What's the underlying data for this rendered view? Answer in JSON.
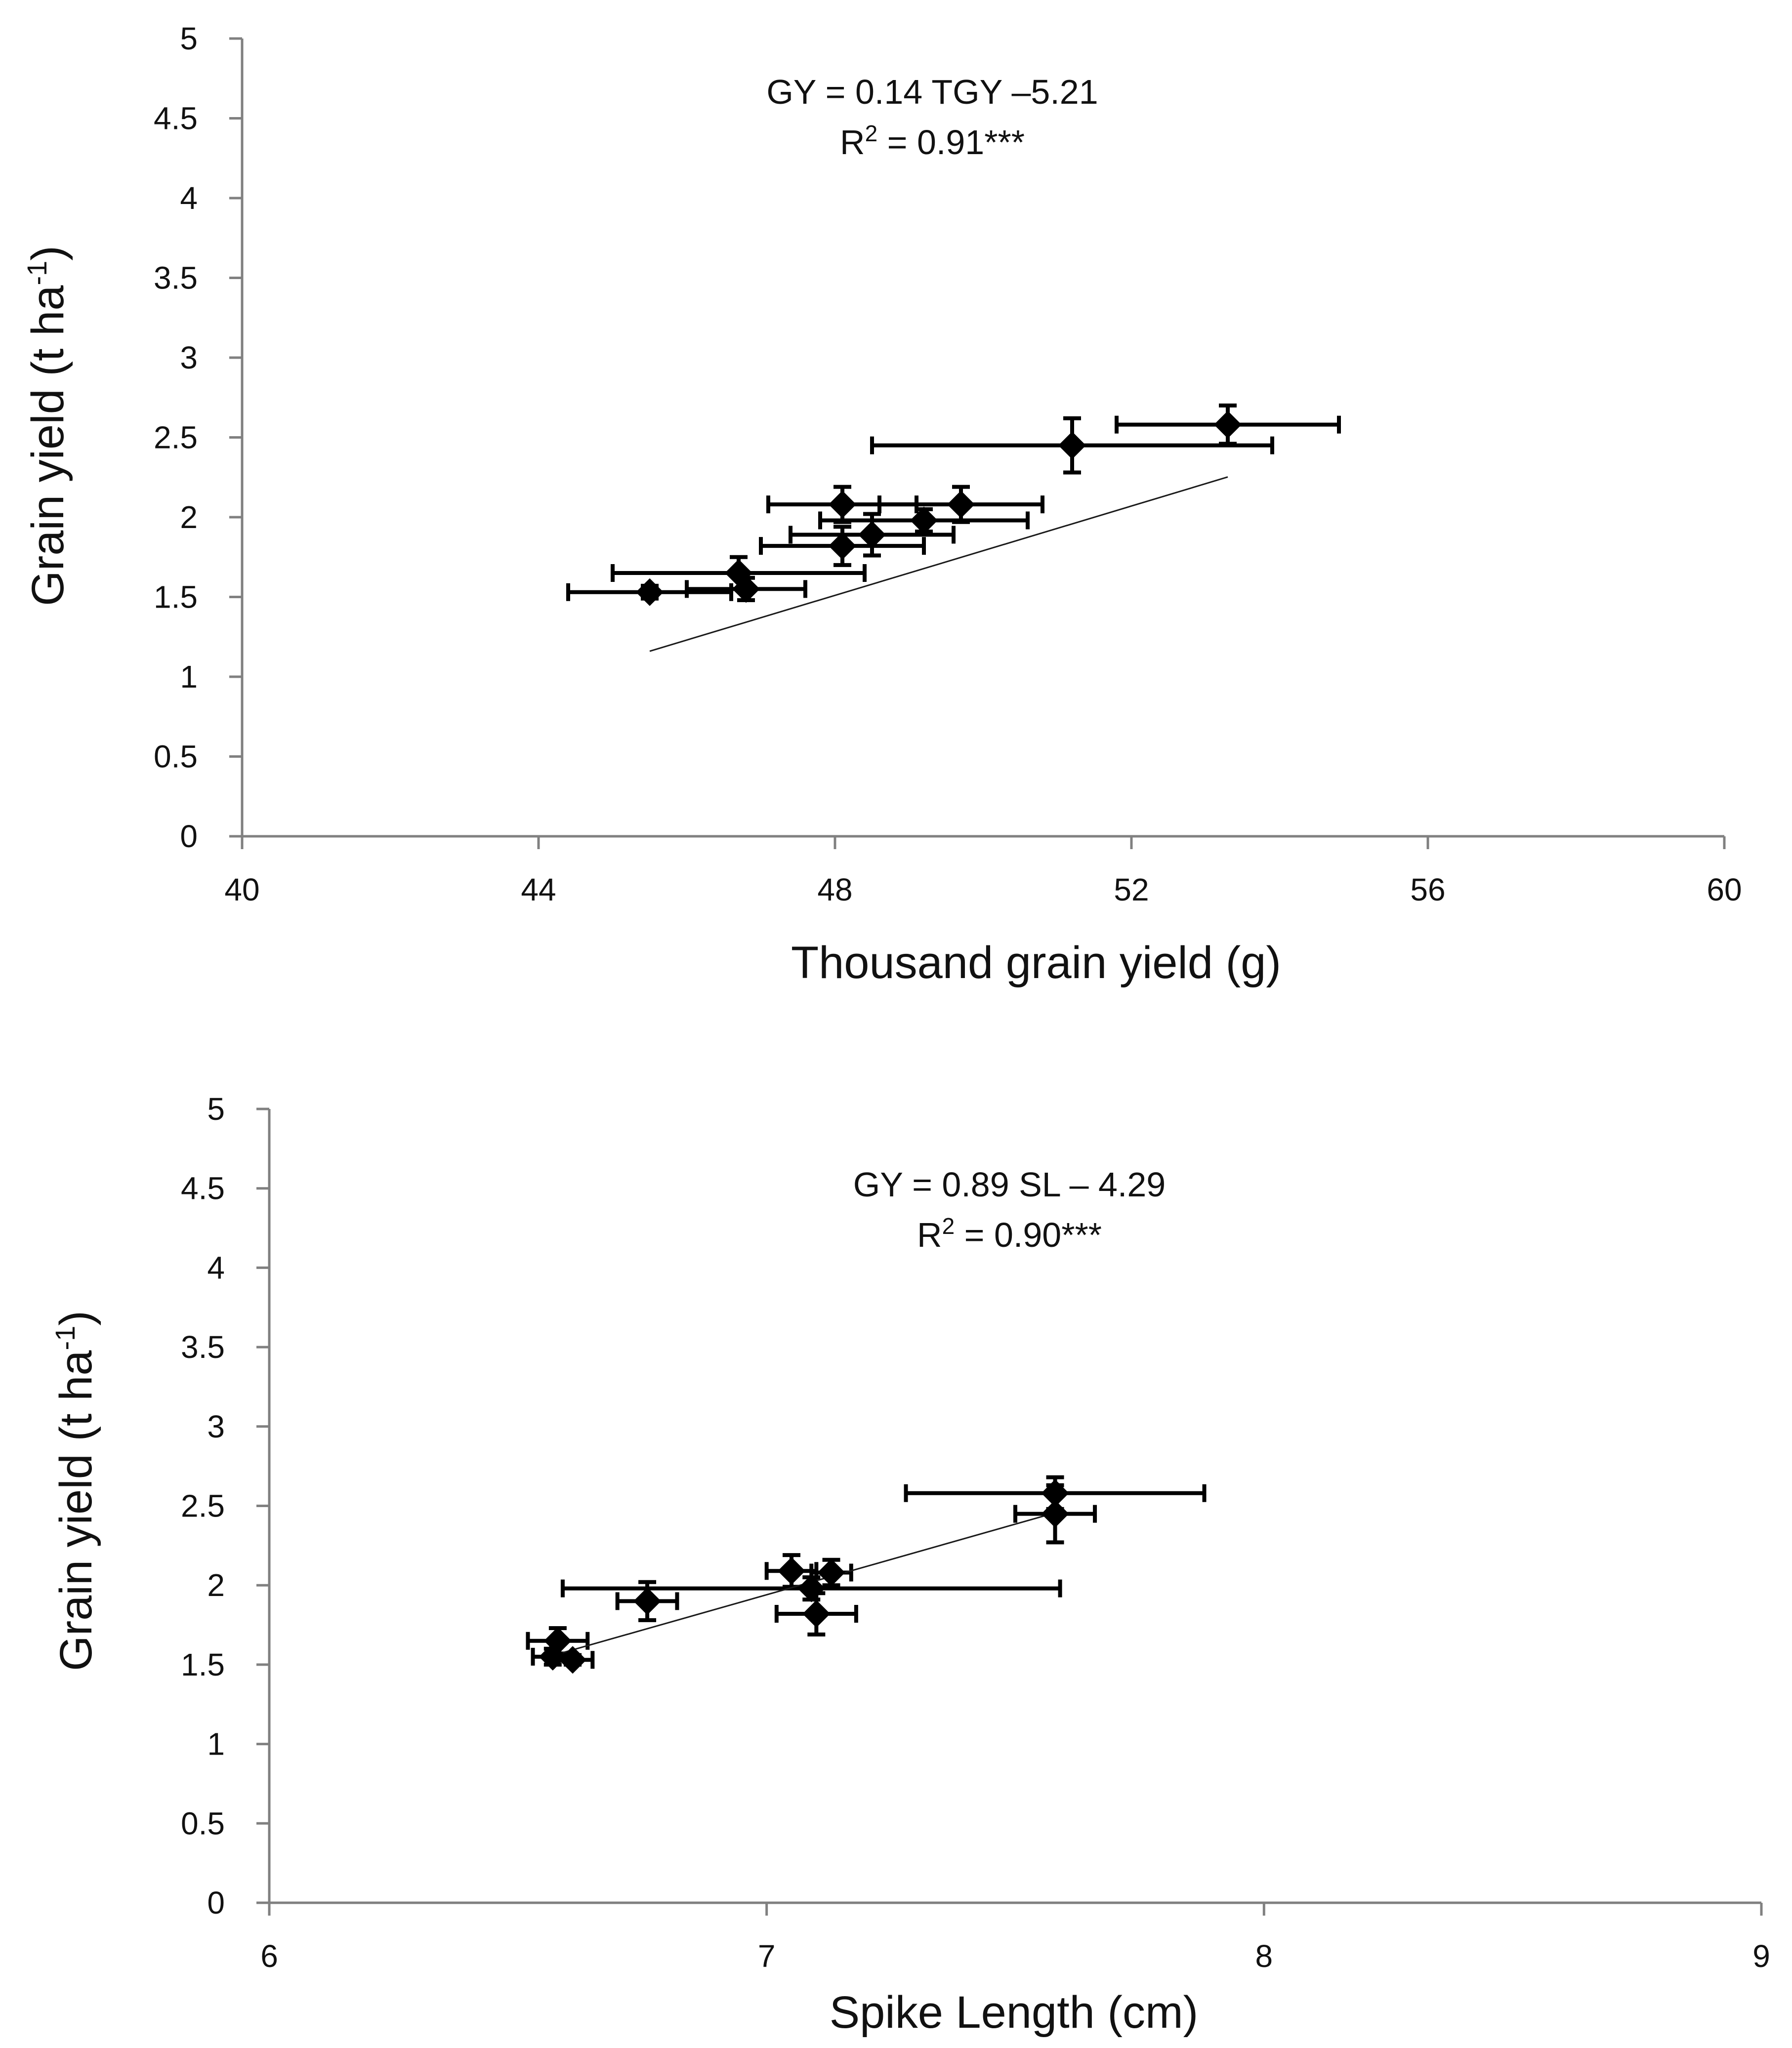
{
  "chart_data": [
    {
      "type": "scatter",
      "name": "tgy",
      "xlabel": "Thousand grain yield (g)",
      "ylabel": "Grain yield (t ha",
      "ylabel_sup": "-1",
      "ylabel_end": ")",
      "xlim": [
        40,
        60
      ],
      "ylim": [
        0,
        5
      ],
      "xticks": [
        "40",
        "44",
        "48",
        "52",
        "56",
        "60"
      ],
      "yticks": [
        "0",
        "0.5",
        "1",
        "1.5",
        "2",
        "2.5",
        "3",
        "3.5",
        "4",
        "4.5",
        "5"
      ],
      "equation": "GY = 0.14 TGY –5.21",
      "r2_prefix": "R",
      "r2_sup": "2",
      "r2_value": " = 0.91***",
      "fit": {
        "slope": 0.14,
        "intercept": -5.21,
        "x_range": [
          45.5,
          53.3
        ]
      },
      "points": [
        {
          "x": 45.5,
          "y": 1.53,
          "xerr": 1.1,
          "yerr": 0.04
        },
        {
          "x": 46.7,
          "y": 1.65,
          "xerr": 1.7,
          "yerr": 0.1
        },
        {
          "x": 46.8,
          "y": 1.55,
          "xerr": 0.8,
          "yerr": 0.07
        },
        {
          "x": 48.1,
          "y": 1.82,
          "xerr": 1.1,
          "yerr": 0.12
        },
        {
          "x": 48.5,
          "y": 1.89,
          "xerr": 1.1,
          "yerr": 0.13
        },
        {
          "x": 48.1,
          "y": 2.08,
          "xerr": 1.0,
          "yerr": 0.11
        },
        {
          "x": 49.2,
          "y": 1.98,
          "xerr": 1.4,
          "yerr": 0.07
        },
        {
          "x": 49.7,
          "y": 2.08,
          "xerr": 1.1,
          "yerr": 0.11
        },
        {
          "x": 51.2,
          "y": 2.45,
          "xerr": 2.7,
          "yerr": 0.17
        },
        {
          "x": 53.3,
          "y": 2.58,
          "xerr": 1.5,
          "yerr": 0.12
        }
      ]
    },
    {
      "type": "scatter",
      "name": "sl",
      "xlabel": "Spike Length (cm)",
      "ylabel": "Grain yield (t ha",
      "ylabel_sup": "-1",
      "ylabel_end": ")",
      "xlim": [
        6,
        9
      ],
      "ylim": [
        0,
        5
      ],
      "xticks": [
        "6",
        "7",
        "8",
        "9"
      ],
      "yticks": [
        "0",
        "0.5",
        "1",
        "1.5",
        "2",
        "2.5",
        "3",
        "3.5",
        "4",
        "4.5",
        "5"
      ],
      "equation": "GY = 0.89 SL – 4.29",
      "r2_prefix": "R",
      "r2_sup": "2",
      "r2_value": " = 0.90***",
      "fit": {
        "slope": 0.89,
        "intercept": -4.29,
        "x_range": [
          6.58,
          7.58
        ]
      },
      "points": [
        {
          "x": 6.58,
          "y": 1.65,
          "xerr": 0.06,
          "yerr": 0.08
        },
        {
          "x": 6.57,
          "y": 1.55,
          "xerr": 0.04,
          "yerr": 0.05
        },
        {
          "x": 6.61,
          "y": 1.53,
          "xerr": 0.04,
          "yerr": 0.03
        },
        {
          "x": 6.76,
          "y": 1.9,
          "xerr": 0.06,
          "yerr": 0.12
        },
        {
          "x": 7.05,
          "y": 2.09,
          "xerr": 0.05,
          "yerr": 0.1
        },
        {
          "x": 7.13,
          "y": 2.08,
          "xerr": 0.04,
          "yerr": 0.08
        },
        {
          "x": 7.09,
          "y": 1.98,
          "xerr": 0.5,
          "yerr": 0.07
        },
        {
          "x": 7.1,
          "y": 1.82,
          "xerr": 0.08,
          "yerr": 0.13
        },
        {
          "x": 7.58,
          "y": 2.58,
          "xerr": 0.3,
          "yerr": 0.1
        },
        {
          "x": 7.58,
          "y": 2.45,
          "xerr": 0.08,
          "yerr": 0.18
        }
      ]
    }
  ]
}
